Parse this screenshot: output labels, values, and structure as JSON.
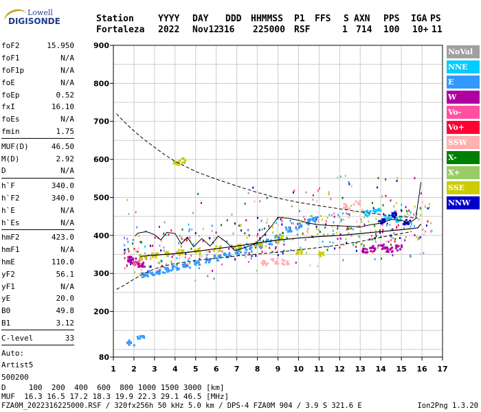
{
  "logo": {
    "line1": "Lowell",
    "line2": "DIGISONDE"
  },
  "header": {
    "labels": [
      "Station",
      "YYYY",
      "DAY",
      "DDD",
      "HHMMSS",
      "P1",
      "FFS",
      "S",
      "AXN",
      "PPS",
      "IGA",
      "PS"
    ],
    "values": [
      "Fortaleza",
      "2022",
      "Nov12",
      "316",
      "225000",
      "RSF",
      "",
      "1",
      "714",
      "100",
      "10+",
      "11"
    ]
  },
  "params": {
    "group1": [
      {
        "name": "foF2",
        "value": "15.950"
      },
      {
        "name": "foF1",
        "value": "N/A"
      },
      {
        "name": "foF1p",
        "value": "N/A"
      },
      {
        "name": "foE",
        "value": "N/A"
      },
      {
        "name": "foEp",
        "value": "0.52"
      },
      {
        "name": "fxI",
        "value": "16.10"
      },
      {
        "name": "foEs",
        "value": "N/A"
      },
      {
        "name": "fmin",
        "value": "1.75"
      }
    ],
    "group2": [
      {
        "name": "MUF(D)",
        "value": "46.50"
      },
      {
        "name": "M(D)",
        "value": "2.92"
      },
      {
        "name": "D",
        "value": "N/A"
      }
    ],
    "group3": [
      {
        "name": "h`F",
        "value": "340.0"
      },
      {
        "name": "h`F2",
        "value": "340.0"
      },
      {
        "name": "h`E",
        "value": "N/A"
      },
      {
        "name": "h`Es",
        "value": "N/A"
      }
    ],
    "group4": [
      {
        "name": "hmF2",
        "value": "423.0"
      },
      {
        "name": "hmF1",
        "value": "N/A"
      },
      {
        "name": "hmE",
        "value": "110.0"
      },
      {
        "name": "yF2",
        "value": "56.1"
      },
      {
        "name": "yF1",
        "value": "N/A"
      },
      {
        "name": "yE",
        "value": "20.0"
      },
      {
        "name": "B0",
        "value": "49.8"
      },
      {
        "name": "B1",
        "value": "3.12"
      }
    ],
    "group5": [
      {
        "name": "C-level",
        "value": "33"
      }
    ],
    "auto": [
      "Auto:",
      "Artist5",
      "500200"
    ]
  },
  "legend": [
    {
      "label": "NoVal",
      "color": "#a0a0a0"
    },
    {
      "label": "NNE",
      "color": "#00ccff"
    },
    {
      "label": "E",
      "color": "#3399ff"
    },
    {
      "label": "W",
      "color": "#b000a0"
    },
    {
      "label": "Vo-",
      "color": "#ff4fa0"
    },
    {
      "label": "Vo+",
      "color": "#ff0033"
    },
    {
      "label": "SSW",
      "color": "#ffb0b0"
    },
    {
      "label": "X-",
      "color": "#008000"
    },
    {
      "label": "X+",
      "color": "#99cc66"
    },
    {
      "label": "SSE",
      "color": "#cccc00"
    },
    {
      "label": "NNW",
      "color": "#0000cc"
    }
  ],
  "footer": {
    "line1": "D     100  200  400  600  800 1000 1500 3000 [km]",
    "line2": "MUF  16.3 16.5 17.2 18.3 19.9 22.3 29.1 46.5 [MHz]",
    "line3": "FZA0M_2022316225000.RSF / 320fx256h 50 kHz 5.0 km / DPS-4 FZA0M 904 / 3.9 S 321.6 E",
    "version": "Ion2Png 1.3.20"
  },
  "chart_data": {
    "type": "scatter",
    "xlim": [
      1,
      17
    ],
    "ylim": [
      80,
      900
    ],
    "x_ticks": [
      1,
      2,
      3,
      4,
      5,
      6,
      7,
      8,
      9,
      10,
      11,
      12,
      13,
      14,
      15,
      16,
      17
    ],
    "y_ticks": [
      80,
      200,
      300,
      400,
      500,
      600,
      700,
      800,
      900
    ],
    "grid": true,
    "dashed_curve": [
      [
        1.15,
        720
      ],
      [
        1.5,
        700
      ],
      [
        2,
        675
      ],
      [
        2.5,
        652
      ],
      [
        3,
        632
      ],
      [
        3.5,
        612
      ],
      [
        4,
        595
      ],
      [
        5,
        568
      ],
      [
        6,
        548
      ],
      [
        7,
        530
      ],
      [
        8,
        513
      ],
      [
        9,
        498
      ],
      [
        10,
        487
      ],
      [
        11,
        478
      ],
      [
        12,
        470
      ],
      [
        13,
        462
      ],
      [
        14,
        455
      ],
      [
        15,
        450
      ],
      [
        15.8,
        445
      ]
    ],
    "dashed_lower": [
      [
        1.15,
        258
      ],
      [
        1.5,
        268
      ],
      [
        2,
        285
      ],
      [
        2.5,
        300
      ],
      [
        3,
        312
      ],
      [
        3.5,
        320
      ],
      [
        4,
        326
      ],
      [
        5,
        334
      ],
      [
        6,
        340
      ],
      [
        7,
        346
      ],
      [
        8,
        351
      ],
      [
        9,
        356
      ],
      [
        10,
        362
      ],
      [
        11,
        368
      ],
      [
        12,
        375
      ],
      [
        13,
        384
      ],
      [
        14,
        395
      ],
      [
        15,
        405
      ],
      [
        15.5,
        410
      ]
    ],
    "solid_virtual": [
      [
        2.05,
        398
      ],
      [
        2.2,
        406
      ],
      [
        2.6,
        410
      ],
      [
        3.0,
        402
      ],
      [
        3.3,
        388
      ],
      [
        3.6,
        408
      ],
      [
        4.0,
        405
      ],
      [
        4.3,
        378
      ],
      [
        4.6,
        395
      ],
      [
        4.9,
        370
      ],
      [
        5.3,
        392
      ],
      [
        5.7,
        372
      ],
      [
        6.1,
        398
      ],
      [
        6.5,
        382
      ],
      [
        6.9,
        360
      ],
      [
        7.4,
        368
      ],
      [
        7.9,
        378
      ],
      [
        8.3,
        400
      ],
      [
        8.7,
        425
      ],
      [
        9.0,
        448
      ],
      [
        9.5,
        445
      ],
      [
        10,
        440
      ],
      [
        10.5,
        432
      ],
      [
        11,
        428
      ],
      [
        11.5,
        426
      ],
      [
        12,
        425
      ],
      [
        12.5,
        424
      ],
      [
        13,
        422
      ],
      [
        13.5,
        428
      ],
      [
        14,
        432
      ],
      [
        14.5,
        442
      ],
      [
        15,
        440
      ],
      [
        15.4,
        432
      ],
      [
        15.7,
        445
      ],
      [
        15.95,
        540
      ]
    ],
    "solid_true": [
      [
        2.3,
        345
      ],
      [
        3,
        348
      ],
      [
        4,
        352
      ],
      [
        5,
        358
      ],
      [
        6,
        365
      ],
      [
        7,
        372
      ],
      [
        8,
        380
      ],
      [
        9,
        388
      ],
      [
        10,
        393
      ],
      [
        11,
        397
      ],
      [
        12,
        400
      ],
      [
        13,
        405
      ],
      [
        14,
        410
      ],
      [
        15,
        415
      ],
      [
        15.8,
        420
      ],
      [
        15.95,
        430
      ]
    ],
    "trace_points": [
      {
        "x": 1.7,
        "y": 340,
        "src": "W"
      },
      {
        "x": 1.9,
        "y": 335,
        "src": "W"
      },
      {
        "x": 2.1,
        "y": 330,
        "src": "Vo-"
      },
      {
        "x": 2.3,
        "y": 325,
        "src": "W"
      },
      {
        "x": 2.5,
        "y": 300,
        "src": "E"
      },
      {
        "x": 2.8,
        "y": 303,
        "src": "E"
      },
      {
        "x": 3.2,
        "y": 307,
        "src": "E"
      },
      {
        "x": 3.6,
        "y": 311,
        "src": "E"
      },
      {
        "x": 4.0,
        "y": 317,
        "src": "E"
      },
      {
        "x": 4.5,
        "y": 322,
        "src": "E"
      },
      {
        "x": 5.0,
        "y": 330,
        "src": "E"
      },
      {
        "x": 5.5,
        "y": 336,
        "src": "E"
      },
      {
        "x": 6.0,
        "y": 343,
        "src": "E"
      },
      {
        "x": 6.5,
        "y": 350,
        "src": "E"
      },
      {
        "x": 7.0,
        "y": 358,
        "src": "E"
      },
      {
        "x": 7.5,
        "y": 366,
        "src": "E"
      },
      {
        "x": 8.0,
        "y": 375,
        "src": "E"
      },
      {
        "x": 8.5,
        "y": 386,
        "src": "E"
      },
      {
        "x": 9.0,
        "y": 400,
        "src": "E"
      },
      {
        "x": 9.5,
        "y": 418,
        "src": "E"
      },
      {
        "x": 10.0,
        "y": 428,
        "src": "E"
      },
      {
        "x": 10.5,
        "y": 438,
        "src": "E"
      },
      {
        "x": 10.8,
        "y": 445,
        "src": "E"
      },
      {
        "x": 2.4,
        "y": 345,
        "src": "SSE"
      },
      {
        "x": 3.0,
        "y": 352,
        "src": "SSE"
      },
      {
        "x": 3.5,
        "y": 356,
        "src": "SSE"
      },
      {
        "x": 4.2,
        "y": 358,
        "src": "SSE"
      },
      {
        "x": 5.0,
        "y": 362,
        "src": "SSE"
      },
      {
        "x": 6.0,
        "y": 368,
        "src": "SSE"
      },
      {
        "x": 7.0,
        "y": 372,
        "src": "SSE"
      },
      {
        "x": 8.0,
        "y": 382,
        "src": "SSE"
      },
      {
        "x": 9.0,
        "y": 395,
        "src": "SSE"
      },
      {
        "x": 10.0,
        "y": 360,
        "src": "SSE"
      },
      {
        "x": 11.0,
        "y": 355,
        "src": "SSE"
      },
      {
        "x": 8.3,
        "y": 330,
        "src": "SSW"
      },
      {
        "x": 8.8,
        "y": 335,
        "src": "SSW"
      },
      {
        "x": 9.3,
        "y": 332,
        "src": "SSW"
      },
      {
        "x": 13.2,
        "y": 362,
        "src": "W"
      },
      {
        "x": 13.6,
        "y": 368,
        "src": "W"
      },
      {
        "x": 14.0,
        "y": 372,
        "src": "W"
      },
      {
        "x": 14.4,
        "y": 366,
        "src": "W"
      },
      {
        "x": 14.8,
        "y": 370,
        "src": "W"
      },
      {
        "x": 13.3,
        "y": 460,
        "src": "NNE"
      },
      {
        "x": 13.8,
        "y": 470,
        "src": "NNE"
      },
      {
        "x": 14.3,
        "y": 450,
        "src": "NNE"
      },
      {
        "x": 14.8,
        "y": 445,
        "src": "NNE"
      },
      {
        "x": 14.0,
        "y": 440,
        "src": "NNW"
      },
      {
        "x": 14.6,
        "y": 455,
        "src": "NNW"
      },
      {
        "x": 15.2,
        "y": 438,
        "src": "NNW"
      },
      {
        "x": 12.3,
        "y": 480,
        "src": "SSW"
      },
      {
        "x": 12.8,
        "y": 490,
        "src": "SSW"
      },
      {
        "x": 4.0,
        "y": 590,
        "src": "SSE"
      },
      {
        "x": 4.3,
        "y": 600,
        "src": "SSE"
      },
      {
        "x": 1.8,
        "y": 120,
        "src": "E"
      },
      {
        "x": 2.3,
        "y": 135,
        "src": "E"
      }
    ],
    "noise_region": {
      "x": [
        1.5,
        16.5
      ],
      "y": [
        280,
        560
      ],
      "density": 520
    }
  }
}
